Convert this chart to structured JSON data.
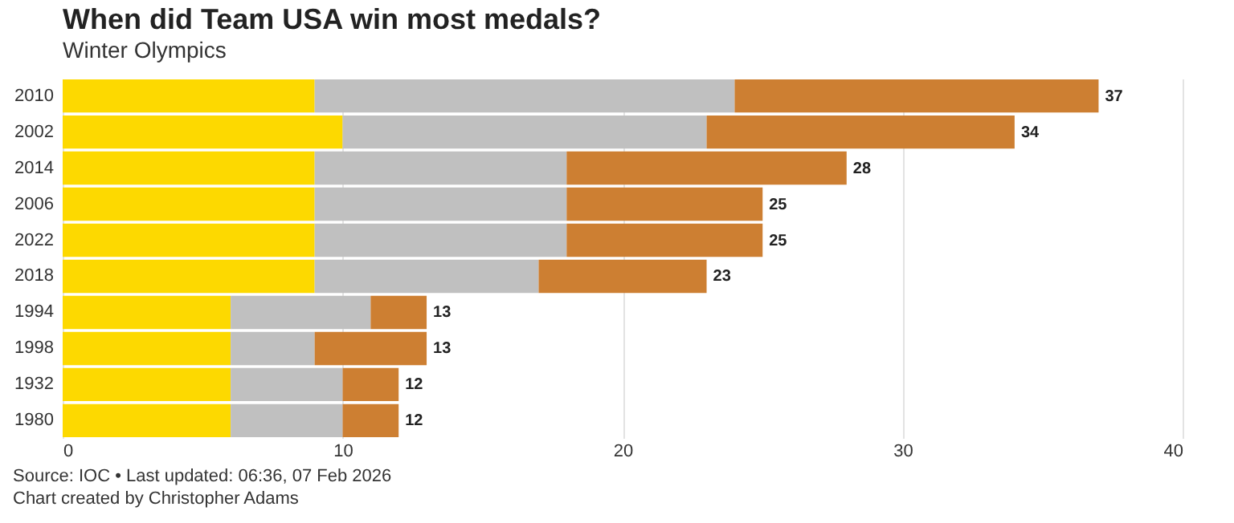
{
  "chart_data": {
    "type": "bar",
    "orientation": "horizontal",
    "stacked": true,
    "title": "When did Team USA win most medals?",
    "subtitle": "Winter Olympics",
    "categories": [
      "2010",
      "2002",
      "2014",
      "2006",
      "2022",
      "2018",
      "1994",
      "1998",
      "1932",
      "1980"
    ],
    "series": [
      {
        "color": "#fdd900",
        "values": [
          9,
          10,
          9,
          9,
          9,
          9,
          6,
          6,
          6,
          6
        ]
      },
      {
        "color": "#c0c0c0",
        "values": [
          15,
          13,
          9,
          9,
          9,
          8,
          5,
          3,
          4,
          4
        ]
      },
      {
        "color": "#cd7f32",
        "values": [
          13,
          11,
          10,
          7,
          7,
          6,
          2,
          4,
          2,
          2
        ]
      }
    ],
    "totals": [
      "37",
      "34",
      "28",
      "25",
      "25",
      "23",
      "13",
      "13",
      "12",
      "12"
    ],
    "xlim": [
      0,
      40
    ],
    "xticks": [
      0,
      10,
      20,
      30,
      40
    ],
    "grid": "x",
    "annotations": [
      "Source: IOC • Last updated: 06:36, 07 Feb 2026",
      "Chart created by Christopher Adams"
    ]
  }
}
